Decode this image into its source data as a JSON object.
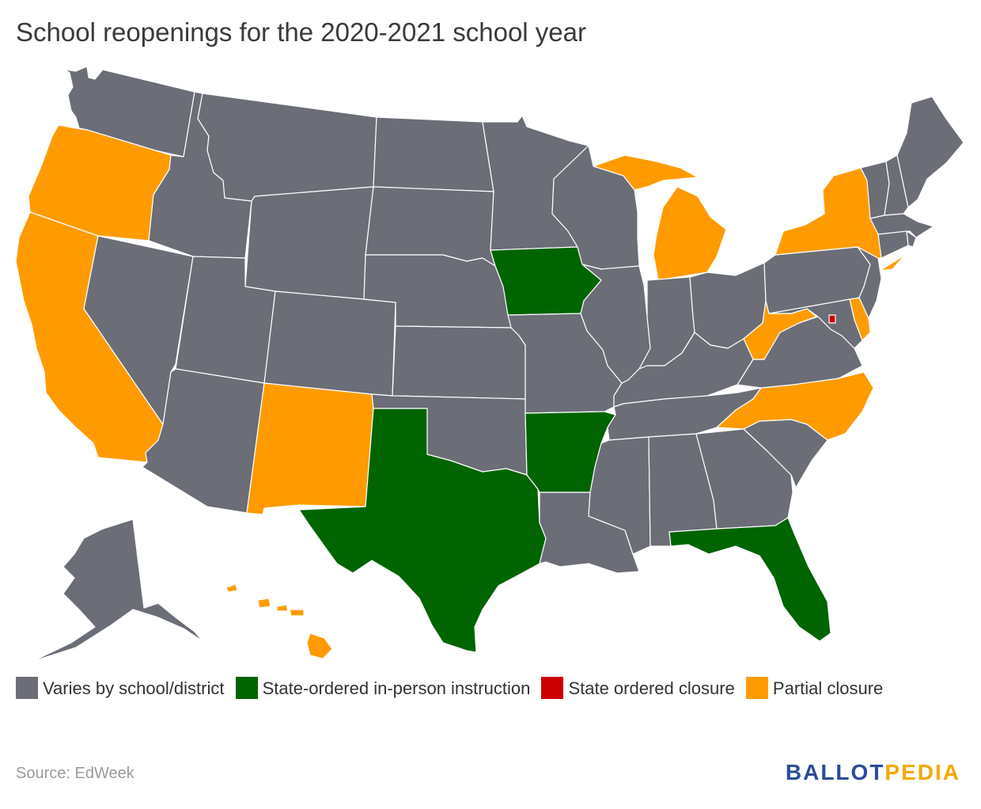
{
  "title": "School reopenings for the 2020-2021 school year",
  "colors": {
    "varies": "#6b6d77",
    "in_person": "#006400",
    "closure": "#cc0000",
    "partial": "#ff9b00",
    "background": "#ffffff"
  },
  "legend": [
    {
      "key": "varies",
      "label": "Varies by school/district"
    },
    {
      "key": "in_person",
      "label": "State-ordered in-person instruction"
    },
    {
      "key": "closure",
      "label": "State ordered closure"
    },
    {
      "key": "partial",
      "label": "Partial closure"
    }
  ],
  "states": {
    "WA": "varies",
    "OR": "partial",
    "CA": "partial",
    "NV": "varies",
    "ID": "varies",
    "MT": "varies",
    "WY": "varies",
    "UT": "varies",
    "AZ": "varies",
    "CO": "varies",
    "NM": "partial",
    "ND": "varies",
    "SD": "varies",
    "NE": "varies",
    "KS": "varies",
    "OK": "varies",
    "TX": "in_person",
    "MN": "varies",
    "IA": "in_person",
    "MO": "varies",
    "AR": "in_person",
    "LA": "varies",
    "WI": "varies",
    "IL": "varies",
    "MI": "partial",
    "IN": "varies",
    "OH": "varies",
    "KY": "varies",
    "TN": "varies",
    "MS": "varies",
    "AL": "varies",
    "GA": "varies",
    "FL": "in_person",
    "SC": "varies",
    "NC": "partial",
    "VA": "varies",
    "WV": "partial",
    "PA": "varies",
    "NY": "partial",
    "VT": "varies",
    "NH": "varies",
    "ME": "varies",
    "MA": "varies",
    "CT": "varies",
    "RI": "varies",
    "NJ": "varies",
    "DE": "partial",
    "MD": "varies",
    "DC": "closure",
    "AK": "varies",
    "HI": "partial"
  },
  "source": "Source: EdWeek",
  "logo": {
    "part1": "BALLOT",
    "part2": "PEDIA"
  }
}
